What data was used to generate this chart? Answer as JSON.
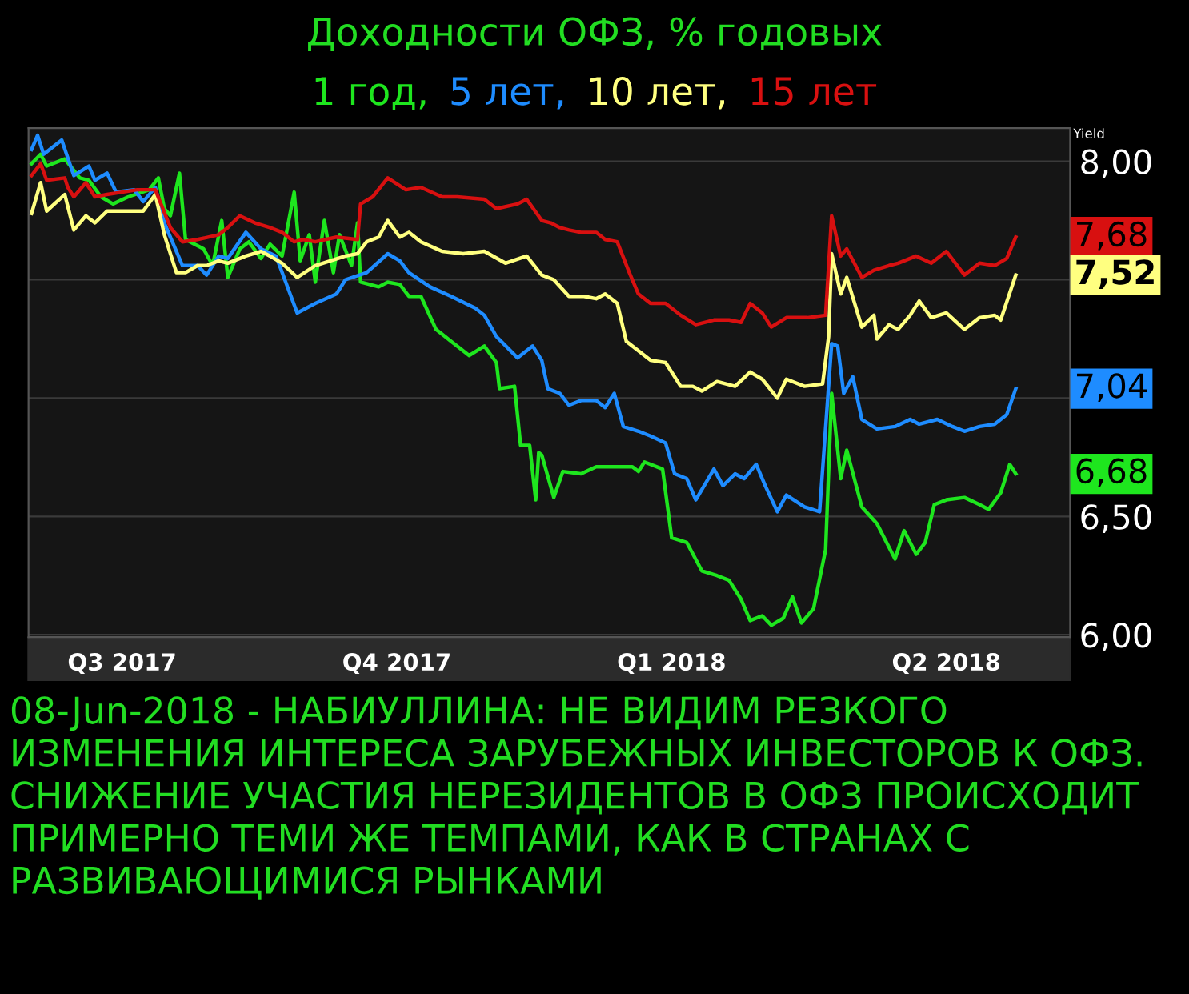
{
  "chart_data": {
    "type": "line",
    "title": "Доходности ОФЗ, % годовых",
    "ylabel": "Yield",
    "xlim": [
      "2017-07-16",
      "2018-06-26"
    ],
    "xticks": [
      {
        "value": "2017-08-16",
        "label": "Q3 2017"
      },
      {
        "value": "2017-11-15",
        "label": "Q4 2017"
      },
      {
        "value": "2018-02-14",
        "label": "Q1 2018"
      },
      {
        "value": "2018-05-16",
        "label": "Q2 2018"
      }
    ],
    "ylim": [
      5.99,
      8.14
    ],
    "yticks": [
      {
        "value": 6.0,
        "label": "6,00"
      },
      {
        "value": 6.5,
        "label": "6,50"
      },
      {
        "value": 7.0,
        "label": null
      },
      {
        "value": 7.5,
        "label": null
      },
      {
        "value": 8.0,
        "label": "8,00"
      }
    ],
    "grid": "y",
    "legend": "top",
    "series": [
      {
        "name": "1 год,",
        "color": "#1ee61e",
        "x": [
          "2017-07-17",
          "2017-07-20",
          "2017-07-22",
          "2017-07-28",
          "2017-08-02",
          "2017-08-05",
          "2017-08-09",
          "2017-08-13",
          "2017-08-18",
          "2017-08-25",
          "2017-08-28",
          "2017-08-30",
          "2017-09-01",
          "2017-09-04",
          "2017-09-06",
          "2017-09-12",
          "2017-09-15",
          "2017-09-18",
          "2017-09-20",
          "2017-09-24",
          "2017-09-27",
          "2017-10-01",
          "2017-10-04",
          "2017-10-08",
          "2017-10-12",
          "2017-10-14",
          "2017-10-17",
          "2017-10-19",
          "2017-10-22",
          "2017-10-25",
          "2017-10-27",
          "2017-10-31",
          "2017-11-02",
          "2017-11-03",
          "2017-11-09",
          "2017-11-12",
          "2017-11-16",
          "2017-11-19",
          "2017-11-23",
          "2017-11-28",
          "2017-12-03",
          "2017-12-09",
          "2017-12-14",
          "2017-12-18",
          "2017-12-19",
          "2017-12-24",
          "2017-12-26",
          "2017-12-29",
          "2017-12-31",
          "2018-01-01",
          "2018-01-02",
          "2018-01-06",
          "2018-01-09",
          "2018-01-15",
          "2018-01-20",
          "2018-01-25",
          "2018-02-01",
          "2018-02-03",
          "2018-02-05",
          "2018-02-11",
          "2018-02-14",
          "2018-02-19",
          "2018-02-24",
          "2018-03-01",
          "2018-03-05",
          "2018-03-09",
          "2018-03-12",
          "2018-03-16",
          "2018-03-19",
          "2018-03-23",
          "2018-03-26",
          "2018-03-29",
          "2018-04-02",
          "2018-04-06",
          "2018-04-08",
          "2018-04-11",
          "2018-04-13",
          "2018-04-18",
          "2018-04-23",
          "2018-04-29",
          "2018-05-02",
          "2018-05-06",
          "2018-05-09",
          "2018-05-12",
          "2018-05-16",
          "2018-05-22",
          "2018-05-27",
          "2018-05-30",
          "2018-06-03",
          "2018-06-06",
          "2018-06-08"
        ],
        "values": [
          7.99,
          8.03,
          7.98,
          8.01,
          7.93,
          7.92,
          7.85,
          7.82,
          7.85,
          7.88,
          7.93,
          7.8,
          7.77,
          7.95,
          7.67,
          7.63,
          7.56,
          7.75,
          7.51,
          7.63,
          7.66,
          7.59,
          7.65,
          7.6,
          7.87,
          7.58,
          7.69,
          7.49,
          7.75,
          7.53,
          7.69,
          7.56,
          7.74,
          7.49,
          7.47,
          7.49,
          7.48,
          7.43,
          7.43,
          7.29,
          7.24,
          7.18,
          7.22,
          7.15,
          7.04,
          7.05,
          6.8,
          6.8,
          6.57,
          6.77,
          6.76,
          6.58,
          6.69,
          6.68,
          6.71,
          6.71,
          6.71,
          6.69,
          6.73,
          6.7,
          6.41,
          6.39,
          6.27,
          6.25,
          6.23,
          6.15,
          6.06,
          6.08,
          6.04,
          6.07,
          6.16,
          6.05,
          6.11,
          6.36,
          7.02,
          6.66,
          6.78,
          6.54,
          6.47,
          6.32,
          6.44,
          6.34,
          6.39,
          6.55,
          6.57,
          6.58,
          6.55,
          6.53,
          6.6,
          6.72,
          6.68
        ]
      },
      {
        "name": "5 лет,",
        "color": "#1e8cff",
        "x": [
          "2017-07-17",
          "2017-07-19",
          "2017-07-21",
          "2017-07-27",
          "2017-07-31",
          "2017-08-05",
          "2017-08-07",
          "2017-08-11",
          "2017-08-14",
          "2017-08-20",
          "2017-08-23",
          "2017-08-27",
          "2017-08-30",
          "2017-09-03",
          "2017-09-05",
          "2017-09-10",
          "2017-09-13",
          "2017-09-17",
          "2017-09-20",
          "2017-09-26",
          "2017-10-01",
          "2017-10-06",
          "2017-10-13",
          "2017-10-19",
          "2017-10-26",
          "2017-10-29",
          "2017-11-05",
          "2017-11-12",
          "2017-11-16",
          "2017-11-19",
          "2017-11-26",
          "2017-12-03",
          "2017-12-11",
          "2017-12-14",
          "2017-12-18",
          "2017-12-25",
          "2017-12-30",
          "2018-01-02",
          "2018-01-04",
          "2018-01-08",
          "2018-01-11",
          "2018-01-15",
          "2018-01-20",
          "2018-01-23",
          "2018-01-26",
          "2018-01-29",
          "2018-02-03",
          "2018-02-07",
          "2018-02-12",
          "2018-02-15",
          "2018-02-19",
          "2018-02-22",
          "2018-02-28",
          "2018-03-03",
          "2018-03-07",
          "2018-03-10",
          "2018-03-14",
          "2018-03-17",
          "2018-03-21",
          "2018-03-24",
          "2018-03-30",
          "2018-04-04",
          "2018-04-08",
          "2018-04-10",
          "2018-04-12",
          "2018-04-15",
          "2018-04-18",
          "2018-04-23",
          "2018-04-29",
          "2018-05-04",
          "2018-05-07",
          "2018-05-13",
          "2018-05-18",
          "2018-05-22",
          "2018-05-27",
          "2018-06-01",
          "2018-06-05",
          "2018-06-08"
        ],
        "values": [
          8.05,
          8.11,
          8.03,
          8.09,
          7.94,
          7.98,
          7.92,
          7.95,
          7.87,
          7.88,
          7.83,
          7.89,
          7.74,
          7.62,
          7.56,
          7.56,
          7.52,
          7.6,
          7.59,
          7.7,
          7.63,
          7.6,
          7.36,
          7.4,
          7.44,
          7.5,
          7.53,
          7.61,
          7.58,
          7.53,
          7.47,
          7.43,
          7.38,
          7.35,
          7.26,
          7.17,
          7.22,
          7.16,
          7.04,
          7.02,
          6.97,
          6.99,
          6.99,
          6.96,
          7.02,
          6.88,
          6.86,
          6.84,
          6.81,
          6.68,
          6.66,
          6.57,
          6.7,
          6.63,
          6.68,
          6.66,
          6.72,
          6.63,
          6.52,
          6.59,
          6.54,
          6.52,
          7.23,
          7.22,
          7.02,
          7.09,
          6.91,
          6.87,
          6.88,
          6.91,
          6.89,
          6.91,
          6.88,
          6.86,
          6.88,
          6.89,
          6.93,
          7.04
        ]
      },
      {
        "name": "10 лет,",
        "color": "#ffff80",
        "x": [
          "2017-07-17",
          "2017-07-20",
          "2017-07-22",
          "2017-07-28",
          "2017-07-31",
          "2017-08-04",
          "2017-08-07",
          "2017-08-11",
          "2017-08-16",
          "2017-08-23",
          "2017-08-27",
          "2017-08-30",
          "2017-09-03",
          "2017-09-06",
          "2017-09-10",
          "2017-09-13",
          "2017-09-17",
          "2017-09-20",
          "2017-09-26",
          "2017-10-01",
          "2017-10-04",
          "2017-10-08",
          "2017-10-13",
          "2017-10-19",
          "2017-10-24",
          "2017-10-29",
          "2017-11-02",
          "2017-11-05",
          "2017-11-09",
          "2017-11-12",
          "2017-11-16",
          "2017-11-19",
          "2017-11-23",
          "2017-11-30",
          "2017-12-07",
          "2017-12-14",
          "2017-12-21",
          "2017-12-28",
          "2018-01-02",
          "2018-01-06",
          "2018-01-11",
          "2018-01-16",
          "2018-01-20",
          "2018-01-23",
          "2018-01-27",
          "2018-01-30",
          "2018-02-03",
          "2018-02-07",
          "2018-02-12",
          "2018-02-17",
          "2018-02-21",
          "2018-02-24",
          "2018-03-01",
          "2018-03-07",
          "2018-03-12",
          "2018-03-16",
          "2018-03-21",
          "2018-03-24",
          "2018-03-30",
          "2018-04-05",
          "2018-04-07",
          "2018-04-08",
          "2018-04-11",
          "2018-04-13",
          "2018-04-18",
          "2018-04-22",
          "2018-04-23",
          "2018-04-27",
          "2018-04-30",
          "2018-05-04",
          "2018-05-07",
          "2018-05-11",
          "2018-05-16",
          "2018-05-22",
          "2018-05-27",
          "2018-06-01",
          "2018-06-03",
          "2018-06-08"
        ],
        "values": [
          7.78,
          7.91,
          7.79,
          7.86,
          7.71,
          7.77,
          7.74,
          7.79,
          7.79,
          7.79,
          7.86,
          7.69,
          7.53,
          7.53,
          7.56,
          7.56,
          7.58,
          7.57,
          7.6,
          7.62,
          7.6,
          7.57,
          7.51,
          7.56,
          7.58,
          7.6,
          7.61,
          7.66,
          7.68,
          7.75,
          7.68,
          7.7,
          7.66,
          7.62,
          7.61,
          7.62,
          7.57,
          7.6,
          7.52,
          7.5,
          7.43,
          7.43,
          7.42,
          7.44,
          7.4,
          7.24,
          7.2,
          7.16,
          7.15,
          7.05,
          7.05,
          7.03,
          7.07,
          7.05,
          7.11,
          7.08,
          7.0,
          7.08,
          7.05,
          7.06,
          7.26,
          7.61,
          7.44,
          7.51,
          7.3,
          7.35,
          7.25,
          7.31,
          7.29,
          7.35,
          7.41,
          7.34,
          7.36,
          7.29,
          7.34,
          7.35,
          7.33,
          7.52
        ]
      },
      {
        "name": "15 лет",
        "color": "#d81010",
        "x": [
          "2017-07-17",
          "2017-07-20",
          "2017-07-22",
          "2017-07-28",
          "2017-07-29",
          "2017-07-31",
          "2017-08-04",
          "2017-08-07",
          "2017-08-11",
          "2017-08-16",
          "2017-08-21",
          "2017-08-27",
          "2017-09-01",
          "2017-09-05",
          "2017-09-10",
          "2017-09-17",
          "2017-09-20",
          "2017-09-24",
          "2017-09-29",
          "2017-10-04",
          "2017-10-08",
          "2017-10-12",
          "2017-10-15",
          "2017-10-19",
          "2017-10-26",
          "2017-11-02",
          "2017-11-03",
          "2017-11-07",
          "2017-11-12",
          "2017-11-18",
          "2017-11-23",
          "2017-11-30",
          "2017-12-05",
          "2017-12-14",
          "2017-12-18",
          "2017-12-25",
          "2017-12-28",
          "2018-01-02",
          "2018-01-05",
          "2018-01-08",
          "2018-01-11",
          "2018-01-15",
          "2018-01-20",
          "2018-01-23",
          "2018-01-27",
          "2018-01-31",
          "2018-02-03",
          "2018-02-07",
          "2018-02-12",
          "2018-02-17",
          "2018-02-22",
          "2018-02-28",
          "2018-03-05",
          "2018-03-09",
          "2018-03-12",
          "2018-03-16",
          "2018-03-19",
          "2018-03-24",
          "2018-03-31",
          "2018-04-06",
          "2018-04-08",
          "2018-04-11",
          "2018-04-13",
          "2018-04-18",
          "2018-04-22",
          "2018-04-27",
          "2018-04-30",
          "2018-05-06",
          "2018-05-11",
          "2018-05-16",
          "2018-05-22",
          "2018-05-27",
          "2018-06-01",
          "2018-06-05",
          "2018-06-08"
        ],
        "values": [
          7.94,
          7.99,
          7.92,
          7.93,
          7.89,
          7.85,
          7.91,
          7.85,
          7.86,
          7.87,
          7.88,
          7.88,
          7.72,
          7.66,
          7.67,
          7.69,
          7.72,
          7.77,
          7.74,
          7.72,
          7.7,
          7.66,
          7.67,
          7.66,
          7.68,
          7.67,
          7.82,
          7.85,
          7.93,
          7.88,
          7.89,
          7.85,
          7.85,
          7.84,
          7.8,
          7.82,
          7.84,
          7.75,
          7.74,
          7.72,
          7.71,
          7.7,
          7.7,
          7.67,
          7.66,
          7.53,
          7.44,
          7.4,
          7.4,
          7.35,
          7.31,
          7.33,
          7.33,
          7.32,
          7.4,
          7.36,
          7.3,
          7.34,
          7.34,
          7.35,
          7.77,
          7.6,
          7.63,
          7.51,
          7.54,
          7.56,
          7.57,
          7.6,
          7.57,
          7.62,
          7.52,
          7.57,
          7.56,
          7.59,
          7.68
        ]
      }
    ],
    "annotations": [
      {
        "text": "7,68",
        "x": "2018-06-08",
        "y": 7.68
      },
      {
        "text": "7,52",
        "x": "2018-06-08",
        "y": 7.52
      },
      {
        "text": "7,04",
        "x": "2018-06-08",
        "y": 7.04
      },
      {
        "text": "6,68",
        "x": "2018-06-08",
        "y": 6.68
      },
      "08-Jun-2018 - НАБИУЛЛИНА: НЕ ВИДИМ РЕЗКОГО ИЗМЕНЕНИЯ ИНТЕРЕСА ЗАРУБЕЖНЫХ ИНВЕСТОРОВ К ОФЗ. СНИЖЕНИЕ УЧАСТИЯ НЕРЕЗИДЕНТОВ В ОФЗ ПРОИСХОДИТ ПРИМЕРНО ТЕМИ ЖЕ ТЕМПАМИ, КАК В СТРАНАХ С РАЗВИВАЮЩИМИСЯ РЫНКАМИ"
    ]
  }
}
